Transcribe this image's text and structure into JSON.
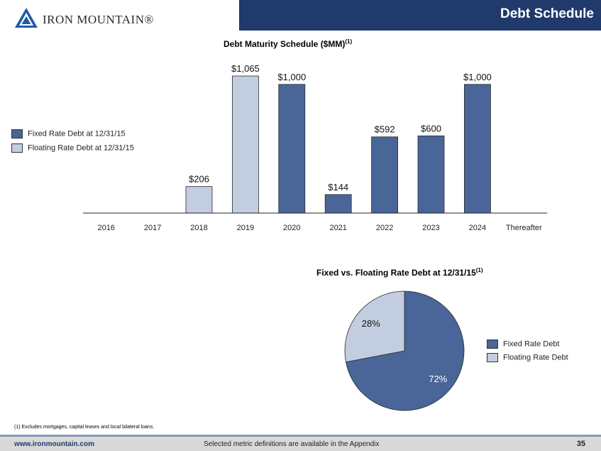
{
  "header": {
    "title": "Debt Schedule",
    "logo_text": "IRON MOUNTAIN®"
  },
  "colors": {
    "fixed": "#4a6598",
    "floating": "#c3cde0",
    "header": "#1f3a6b"
  },
  "bar_title": {
    "text": "Debt Maturity Schedule ($MM)",
    "sup": "(1)"
  },
  "pie_title": {
    "text": "Fixed vs. Floating Rate Debt at 12/31/15",
    "sup": "(1)"
  },
  "bar_legend": [
    "Fixed Rate Debt at 12/31/15",
    "Floating Rate Debt at 12/31/15"
  ],
  "pie_legend": [
    "Fixed Rate Debt",
    "Floating Rate Debt"
  ],
  "chart_data": [
    {
      "type": "bar",
      "title": "Debt Maturity Schedule ($MM)",
      "categories": [
        "2016",
        "2017",
        "2018",
        "2019",
        "2020",
        "2021",
        "2022",
        "2023",
        "2024",
        "Thereafter"
      ],
      "series": [
        {
          "name": "Fixed Rate Debt at 12/31/15",
          "values": [
            0,
            0,
            0,
            0,
            1000,
            144,
            592,
            600,
            1000,
            0
          ]
        },
        {
          "name": "Floating Rate Debt at 12/31/15",
          "values": [
            0,
            0,
            206,
            1065,
            0,
            0,
            0,
            0,
            0,
            0
          ]
        }
      ],
      "data_labels": [
        "",
        "",
        "$206",
        "$1,065",
        "$1,000",
        "$144",
        "$592",
        "$600",
        "$1,000",
        ""
      ],
      "ylim": [
        0,
        1065
      ],
      "legend": "left"
    },
    {
      "type": "pie",
      "title": "Fixed vs. Floating Rate Debt at 12/31/15",
      "slices": [
        {
          "name": "Fixed Rate Debt",
          "value": 72,
          "label": "72%"
        },
        {
          "name": "Floating Rate Debt",
          "value": 28,
          "label": "28%"
        }
      ],
      "legend": "right"
    }
  ],
  "footnote": "(1) Excludes mortgages, capital leases and  local bilateral loans.",
  "footer": {
    "url": "www.ironmountain.com",
    "note": "Selected metric definitions are available in the Appendix",
    "page": "35"
  }
}
